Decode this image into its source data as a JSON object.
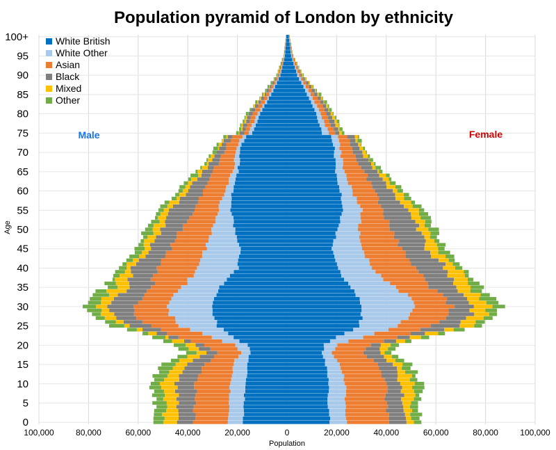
{
  "chart_data": {
    "type": "bar",
    "orientation": "horizontal-diverging",
    "title": "Population pyramid of London by ethnicity",
    "xlabel": "Population",
    "ylabel": "Age",
    "xlim": [
      -100000,
      100000
    ],
    "x_tick_labels": [
      "100,000",
      "80,000",
      "60,000",
      "40,000",
      "20,000",
      "0",
      "20,000",
      "40,000",
      "60,000",
      "80,000",
      "100,000"
    ],
    "y_tick_labels": [
      "0",
      "5",
      "10",
      "15",
      "20",
      "25",
      "30",
      "35",
      "40",
      "45",
      "50",
      "55",
      "60",
      "65",
      "70",
      "75",
      "80",
      "85",
      "90",
      "95",
      "100+"
    ],
    "grid": true,
    "legend_position": "top-left",
    "side_labels": {
      "male": {
        "text": "Male",
        "color": "#1a73e8"
      },
      "female": {
        "text": "Female",
        "color": "#cc0000"
      }
    },
    "series": [
      {
        "name": "White British",
        "color": "#0070c0"
      },
      {
        "name": "White Other",
        "color": "#a9c9ea"
      },
      {
        "name": "Asian",
        "color": "#ed7d31"
      },
      {
        "name": "Black",
        "color": "#7f7f7f"
      },
      {
        "name": "Mixed",
        "color": "#ffc000"
      },
      {
        "name": "Other",
        "color": "#70ad47"
      }
    ],
    "anchor_ages": [
      0,
      5,
      10,
      15,
      18,
      20,
      22,
      25,
      28,
      30,
      33,
      35,
      40,
      45,
      50,
      55,
      60,
      65,
      70,
      72,
      74,
      75,
      80,
      85,
      90,
      95,
      100
    ],
    "male_cumulative": [
      [
        18000,
        24000,
        38000,
        44500,
        50000,
        54000
      ],
      [
        17500,
        23500,
        37500,
        44000,
        49000,
        53500
      ],
      [
        17000,
        23000,
        37000,
        45000,
        50500,
        55000
      ],
      [
        16000,
        22000,
        33000,
        40000,
        46000,
        51000
      ],
      [
        15000,
        19000,
        28000,
        33000,
        37000,
        41000
      ],
      [
        16000,
        21000,
        33000,
        37000,
        41000,
        45000
      ],
      [
        22000,
        31000,
        44000,
        47000,
        50000,
        54000
      ],
      [
        28000,
        43000,
        56000,
        63000,
        67000,
        71000
      ],
      [
        30000,
        47000,
        62000,
        70000,
        75000,
        79000
      ],
      [
        30000,
        48000,
        63000,
        73000,
        78000,
        82000
      ],
      [
        28500,
        45000,
        58000,
        68000,
        73000,
        77500
      ],
      [
        27000,
        42000,
        55000,
        64000,
        70000,
        74000
      ],
      [
        20000,
        36000,
        53000,
        62000,
        65000,
        68000
      ],
      [
        19000,
        33000,
        47000,
        55000,
        58000,
        61000
      ],
      [
        21000,
        30000,
        43000,
        51000,
        54500,
        57500
      ],
      [
        23000,
        28000,
        38000,
        47000,
        50000,
        52500
      ],
      [
        22000,
        25000,
        34000,
        40000,
        42000,
        44000
      ],
      [
        20000,
        22000,
        30000,
        34000,
        35500,
        37000
      ],
      [
        19000,
        20500,
        25500,
        28000,
        29000,
        30000
      ],
      [
        18500,
        20000,
        24500,
        26500,
        27500,
        28500
      ],
      [
        17000,
        18500,
        22000,
        24000,
        24800,
        25500
      ],
      [
        14000,
        15500,
        17500,
        19000,
        19700,
        20500
      ],
      [
        11000,
        12000,
        14000,
        15500,
        16000,
        16500
      ],
      [
        6500,
        7300,
        8500,
        9300,
        9700,
        10200
      ],
      [
        2800,
        3100,
        3600,
        4000,
        4200,
        4500
      ],
      [
        1000,
        1150,
        1300,
        1450,
        1520,
        1600
      ],
      [
        400,
        460,
        520,
        580,
        610,
        650
      ]
    ],
    "female_cumulative": [
      [
        17000,
        24000,
        41000,
        48000,
        51000,
        54000
      ],
      [
        16500,
        23500,
        40000,
        46500,
        50000,
        53000
      ],
      [
        16500,
        23500,
        40000,
        46000,
        51500,
        54500
      ],
      [
        15500,
        21000,
        36000,
        42500,
        46000,
        49500
      ],
      [
        14000,
        18000,
        31000,
        37000,
        39500,
        42000
      ],
      [
        15000,
        20000,
        33000,
        38000,
        41000,
        44000
      ],
      [
        20000,
        30000,
        44000,
        50000,
        53000,
        56000
      ],
      [
        29000,
        45000,
        59000,
        69000,
        74000,
        78000
      ],
      [
        30000,
        50000,
        65000,
        74000,
        80000,
        84000
      ],
      [
        30000,
        51000,
        66000,
        75000,
        81000,
        86000
      ],
      [
        28000,
        48000,
        62000,
        71000,
        77000,
        82000
      ],
      [
        25000,
        43000,
        58000,
        67000,
        73000,
        77500
      ],
      [
        20000,
        34000,
        52000,
        64000,
        69000,
        72000
      ],
      [
        18000,
        30000,
        46000,
        56000,
        60000,
        63000
      ],
      [
        20000,
        29000,
        42000,
        53000,
        57000,
        60000
      ],
      [
        22500,
        30000,
        38000,
        48000,
        52000,
        55000
      ],
      [
        21500,
        26000,
        35000,
        42000,
        44500,
        47000
      ],
      [
        19500,
        23000,
        31000,
        36000,
        37500,
        39000
      ],
      [
        19000,
        21500,
        26500,
        30000,
        31000,
        32000
      ],
      [
        18500,
        21000,
        25500,
        28500,
        29500,
        30500
      ],
      [
        17500,
        20000,
        24000,
        27000,
        28000,
        28800
      ],
      [
        14000,
        16500,
        19000,
        21000,
        22000,
        22800
      ],
      [
        11500,
        13500,
        16000,
        17500,
        18300,
        19000
      ],
      [
        8000,
        9400,
        11000,
        12200,
        12800,
        13400
      ],
      [
        4000,
        4600,
        5300,
        5900,
        6200,
        6500
      ],
      [
        1500,
        1700,
        1950,
        2150,
        2260,
        2380
      ],
      [
        600,
        700,
        800,
        880,
        930,
        990
      ]
    ]
  }
}
